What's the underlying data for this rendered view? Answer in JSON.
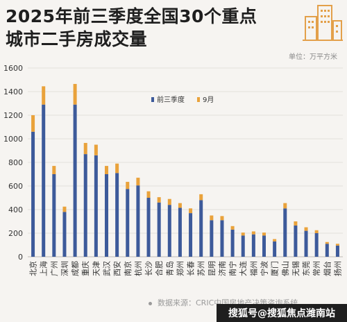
{
  "header": {
    "title_line1": "2025年前三季度全国30个重点",
    "title_line2": "城市二手房成交量"
  },
  "unit_label": "单位：万平方米",
  "source_label": "数据来源：CRIC中国房地产决策咨询系统",
  "watermark": "搜狐号@搜狐焦点潍南站",
  "logo_icon": "buildings-icon",
  "colors": {
    "q1q3": "#3d5a9a",
    "sep": "#e9a23b",
    "axis_text": "#333333",
    "grid": "#e2dfdb"
  },
  "chart_data": {
    "type": "bar",
    "stacked": true,
    "categories": [
      "北京",
      "上海",
      "广州",
      "深圳",
      "成都",
      "重庆",
      "天津",
      "武汉",
      "西安",
      "南京",
      "杭州",
      "长沙",
      "合肥",
      "青岛",
      "郑州",
      "长春",
      "苏州",
      "昆明",
      "济南",
      "南宁",
      "大连",
      "福州",
      "宁波",
      "厦门",
      "佛山",
      "无锡",
      "东莞",
      "常州",
      "烟台",
      "扬州"
    ],
    "series": [
      {
        "name": "前三季度",
        "values": [
          1060,
          1290,
          700,
          380,
          1290,
          870,
          860,
          700,
          710,
          575,
          605,
          500,
          460,
          440,
          415,
          370,
          480,
          310,
          310,
          230,
          180,
          190,
          180,
          130,
          410,
          265,
          220,
          200,
          110,
          95
        ]
      },
      {
        "name": "9月",
        "values": [
          140,
          155,
          70,
          45,
          175,
          95,
          90,
          70,
          80,
          60,
          65,
          55,
          45,
          50,
          40,
          40,
          50,
          40,
          35,
          30,
          25,
          25,
          25,
          20,
          45,
          35,
          30,
          25,
          15,
          15
        ]
      }
    ],
    "ylim": [
      0,
      1600
    ],
    "yticks": [
      0,
      200,
      400,
      600,
      800,
      1000,
      1200,
      1400,
      1600
    ],
    "grid": true,
    "legend_position": "center-right"
  }
}
